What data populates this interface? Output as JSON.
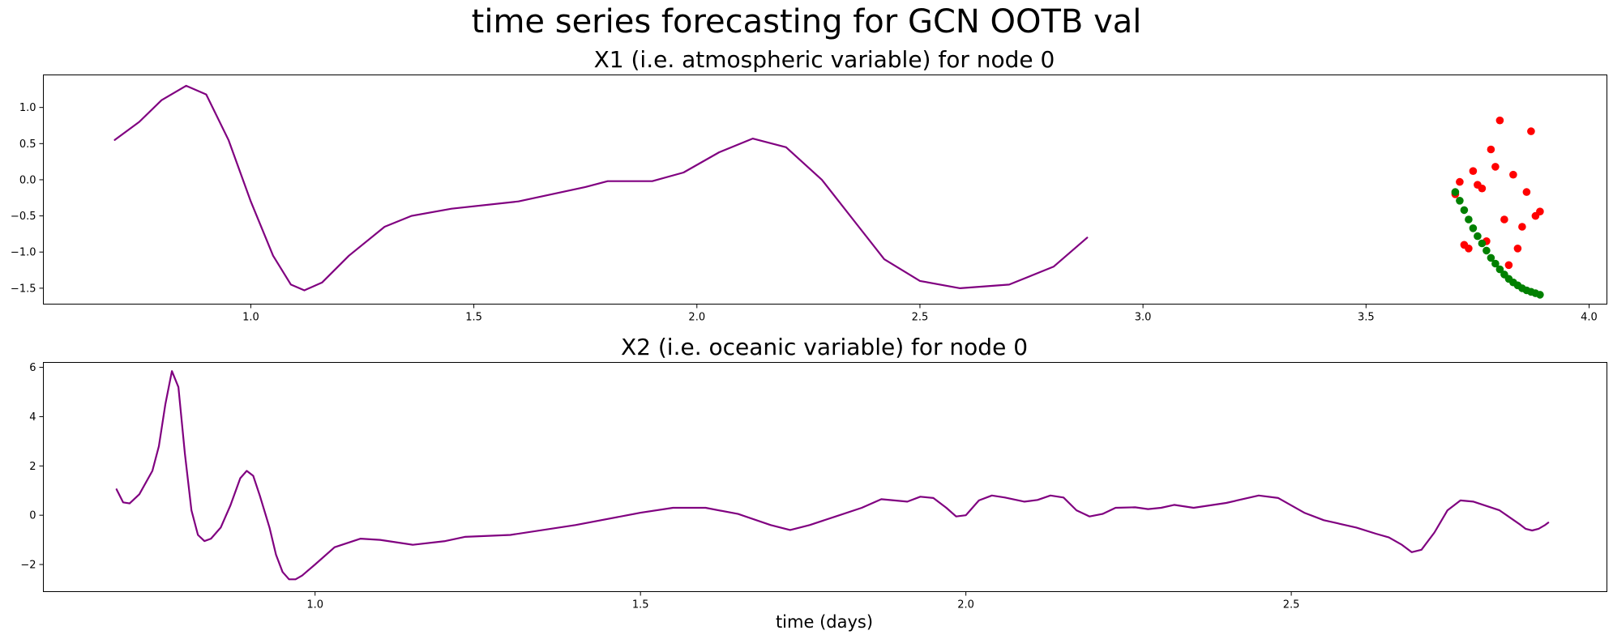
{
  "figure": {
    "title": "time series forecasting for GCN OOTB val"
  },
  "chart_data": [
    {
      "type": "line",
      "title": "X1 (i.e. atmospheric variable) for node 0",
      "xlabel": "",
      "ylabel": "",
      "xlim": [
        0.535,
        4.04
      ],
      "ylim": [
        -1.72,
        1.45
      ],
      "xticks": [
        1.0,
        1.5,
        2.0,
        2.5,
        3.0,
        3.5,
        4.0
      ],
      "xtick_labels": [
        "1.0",
        "1.5",
        "2.0",
        "2.5",
        "3.0",
        "3.5",
        "4.0"
      ],
      "yticks": [
        -1.5,
        -1.0,
        -0.5,
        0.0,
        0.5,
        1.0
      ],
      "ytick_labels": [
        "−1.5",
        "−1.0",
        "−0.5",
        "0.0",
        "0.5",
        "1.0"
      ],
      "grid": false,
      "series": [
        {
          "style": "line",
          "color": "#800080",
          "points": [
            [
              0.695,
              0.55
            ],
            [
              0.75,
              0.8
            ],
            [
              0.8,
              1.1
            ],
            [
              0.855,
              1.3
            ],
            [
              0.9,
              1.18
            ],
            [
              0.95,
              0.55
            ],
            [
              1.0,
              -0.3
            ],
            [
              1.05,
              -1.05
            ],
            [
              1.09,
              -1.45
            ],
            [
              1.12,
              -1.53
            ],
            [
              1.16,
              -1.42
            ],
            [
              1.22,
              -1.05
            ],
            [
              1.3,
              -0.65
            ],
            [
              1.36,
              -0.5
            ],
            [
              1.45,
              -0.4
            ],
            [
              1.6,
              -0.3
            ],
            [
              1.75,
              -0.1
            ],
            [
              1.8,
              -0.02
            ],
            [
              1.9,
              -0.02
            ],
            [
              1.97,
              0.1
            ],
            [
              2.05,
              0.38
            ],
            [
              2.125,
              0.57
            ],
            [
              2.2,
              0.45
            ],
            [
              2.28,
              0.0
            ],
            [
              2.35,
              -0.55
            ],
            [
              2.42,
              -1.1
            ],
            [
              2.5,
              -1.4
            ],
            [
              2.59,
              -1.5
            ],
            [
              2.7,
              -1.45
            ],
            [
              2.8,
              -1.2
            ],
            [
              2.875,
              -0.8
            ]
          ]
        },
        {
          "style": "scatter",
          "color": "#ff0000",
          "points": [
            [
              3.7,
              -0.2
            ],
            [
              3.71,
              -0.03
            ],
            [
              3.72,
              -0.9
            ],
            [
              3.73,
              -0.95
            ],
            [
              3.74,
              0.12
            ],
            [
              3.75,
              -0.07
            ],
            [
              3.76,
              -0.12
            ],
            [
              3.77,
              -0.85
            ],
            [
              3.78,
              0.42
            ],
            [
              3.79,
              0.18
            ],
            [
              3.8,
              0.82
            ],
            [
              3.81,
              -0.55
            ],
            [
              3.82,
              -1.18
            ],
            [
              3.83,
              0.07
            ],
            [
              3.84,
              -0.95
            ],
            [
              3.85,
              -0.65
            ],
            [
              3.86,
              -0.17
            ],
            [
              3.87,
              0.67
            ],
            [
              3.88,
              -0.5
            ],
            [
              3.89,
              -0.44
            ]
          ]
        },
        {
          "style": "scatter",
          "color": "#008000",
          "points": [
            [
              3.7,
              -0.17
            ],
            [
              3.71,
              -0.29
            ],
            [
              3.72,
              -0.42
            ],
            [
              3.73,
              -0.55
            ],
            [
              3.74,
              -0.67
            ],
            [
              3.75,
              -0.78
            ],
            [
              3.76,
              -0.88
            ],
            [
              3.77,
              -0.98
            ],
            [
              3.78,
              -1.08
            ],
            [
              3.79,
              -1.16
            ],
            [
              3.8,
              -1.24
            ],
            [
              3.81,
              -1.31
            ],
            [
              3.82,
              -1.37
            ],
            [
              3.83,
              -1.42
            ],
            [
              3.84,
              -1.46
            ],
            [
              3.85,
              -1.5
            ],
            [
              3.86,
              -1.53
            ],
            [
              3.87,
              -1.55
            ],
            [
              3.88,
              -1.57
            ],
            [
              3.89,
              -1.59
            ]
          ]
        }
      ]
    },
    {
      "type": "line",
      "title": "X2 (i.e. oceanic variable) for node 0",
      "xlabel": "time (days)",
      "ylabel": "",
      "xlim": [
        0.5825,
        2.985
      ],
      "ylim": [
        -3.1,
        6.2
      ],
      "xticks": [
        1.0,
        1.5,
        2.0,
        2.5
      ],
      "xtick_labels": [
        "1.0",
        "1.5",
        "2.0",
        "2.5"
      ],
      "yticks": [
        -2,
        0,
        2,
        4,
        6
      ],
      "ytick_labels": [
        "−2",
        "0",
        "2",
        "4",
        "6"
      ],
      "grid": false,
      "series": [
        {
          "style": "line",
          "color": "#800080",
          "points": [
            [
              0.695,
              1.05
            ],
            [
              0.705,
              0.52
            ],
            [
              0.715,
              0.48
            ],
            [
              0.73,
              0.85
            ],
            [
              0.75,
              1.8
            ],
            [
              0.76,
              2.8
            ],
            [
              0.77,
              4.5
            ],
            [
              0.78,
              5.85
            ],
            [
              0.79,
              5.2
            ],
            [
              0.8,
              2.5
            ],
            [
              0.81,
              0.2
            ],
            [
              0.82,
              -0.8
            ],
            [
              0.83,
              -1.05
            ],
            [
              0.84,
              -0.95
            ],
            [
              0.855,
              -0.5
            ],
            [
              0.87,
              0.4
            ],
            [
              0.885,
              1.5
            ],
            [
              0.895,
              1.8
            ],
            [
              0.905,
              1.6
            ],
            [
              0.915,
              0.8
            ],
            [
              0.93,
              -0.5
            ],
            [
              0.94,
              -1.6
            ],
            [
              0.95,
              -2.3
            ],
            [
              0.96,
              -2.6
            ],
            [
              0.97,
              -2.6
            ],
            [
              0.98,
              -2.45
            ],
            [
              1.0,
              -2.0
            ],
            [
              1.03,
              -1.3
            ],
            [
              1.07,
              -0.95
            ],
            [
              1.1,
              -1.0
            ],
            [
              1.15,
              -1.2
            ],
            [
              1.2,
              -1.05
            ],
            [
              1.23,
              -0.88
            ],
            [
              1.3,
              -0.8
            ],
            [
              1.4,
              -0.4
            ],
            [
              1.5,
              0.1
            ],
            [
              1.55,
              0.3
            ],
            [
              1.6,
              0.3
            ],
            [
              1.65,
              0.05
            ],
            [
              1.7,
              -0.4
            ],
            [
              1.73,
              -0.6
            ],
            [
              1.76,
              -0.4
            ],
            [
              1.8,
              -0.05
            ],
            [
              1.84,
              0.3
            ],
            [
              1.87,
              0.65
            ],
            [
              1.89,
              0.6
            ],
            [
              1.91,
              0.55
            ],
            [
              1.93,
              0.75
            ],
            [
              1.95,
              0.7
            ],
            [
              1.97,
              0.3
            ],
            [
              1.985,
              -0.05
            ],
            [
              2.0,
              0.0
            ],
            [
              2.02,
              0.6
            ],
            [
              2.04,
              0.8
            ],
            [
              2.06,
              0.72
            ],
            [
              2.09,
              0.55
            ],
            [
              2.11,
              0.62
            ],
            [
              2.13,
              0.8
            ],
            [
              2.15,
              0.72
            ],
            [
              2.17,
              0.2
            ],
            [
              2.19,
              -0.05
            ],
            [
              2.21,
              0.05
            ],
            [
              2.23,
              0.3
            ],
            [
              2.26,
              0.32
            ],
            [
              2.28,
              0.25
            ],
            [
              2.3,
              0.3
            ],
            [
              2.32,
              0.42
            ],
            [
              2.35,
              0.3
            ],
            [
              2.4,
              0.5
            ],
            [
              2.45,
              0.8
            ],
            [
              2.48,
              0.7
            ],
            [
              2.52,
              0.1
            ],
            [
              2.55,
              -0.2
            ],
            [
              2.6,
              -0.5
            ],
            [
              2.63,
              -0.75
            ],
            [
              2.65,
              -0.9
            ],
            [
              2.67,
              -1.2
            ],
            [
              2.685,
              -1.5
            ],
            [
              2.7,
              -1.4
            ],
            [
              2.72,
              -0.7
            ],
            [
              2.74,
              0.2
            ],
            [
              2.76,
              0.6
            ],
            [
              2.78,
              0.55
            ],
            [
              2.82,
              0.2
            ],
            [
              2.85,
              -0.35
            ],
            [
              2.86,
              -0.55
            ],
            [
              2.87,
              -0.62
            ],
            [
              2.88,
              -0.55
            ],
            [
              2.89,
              -0.4
            ],
            [
              2.895,
              -0.3
            ]
          ]
        }
      ]
    }
  ]
}
